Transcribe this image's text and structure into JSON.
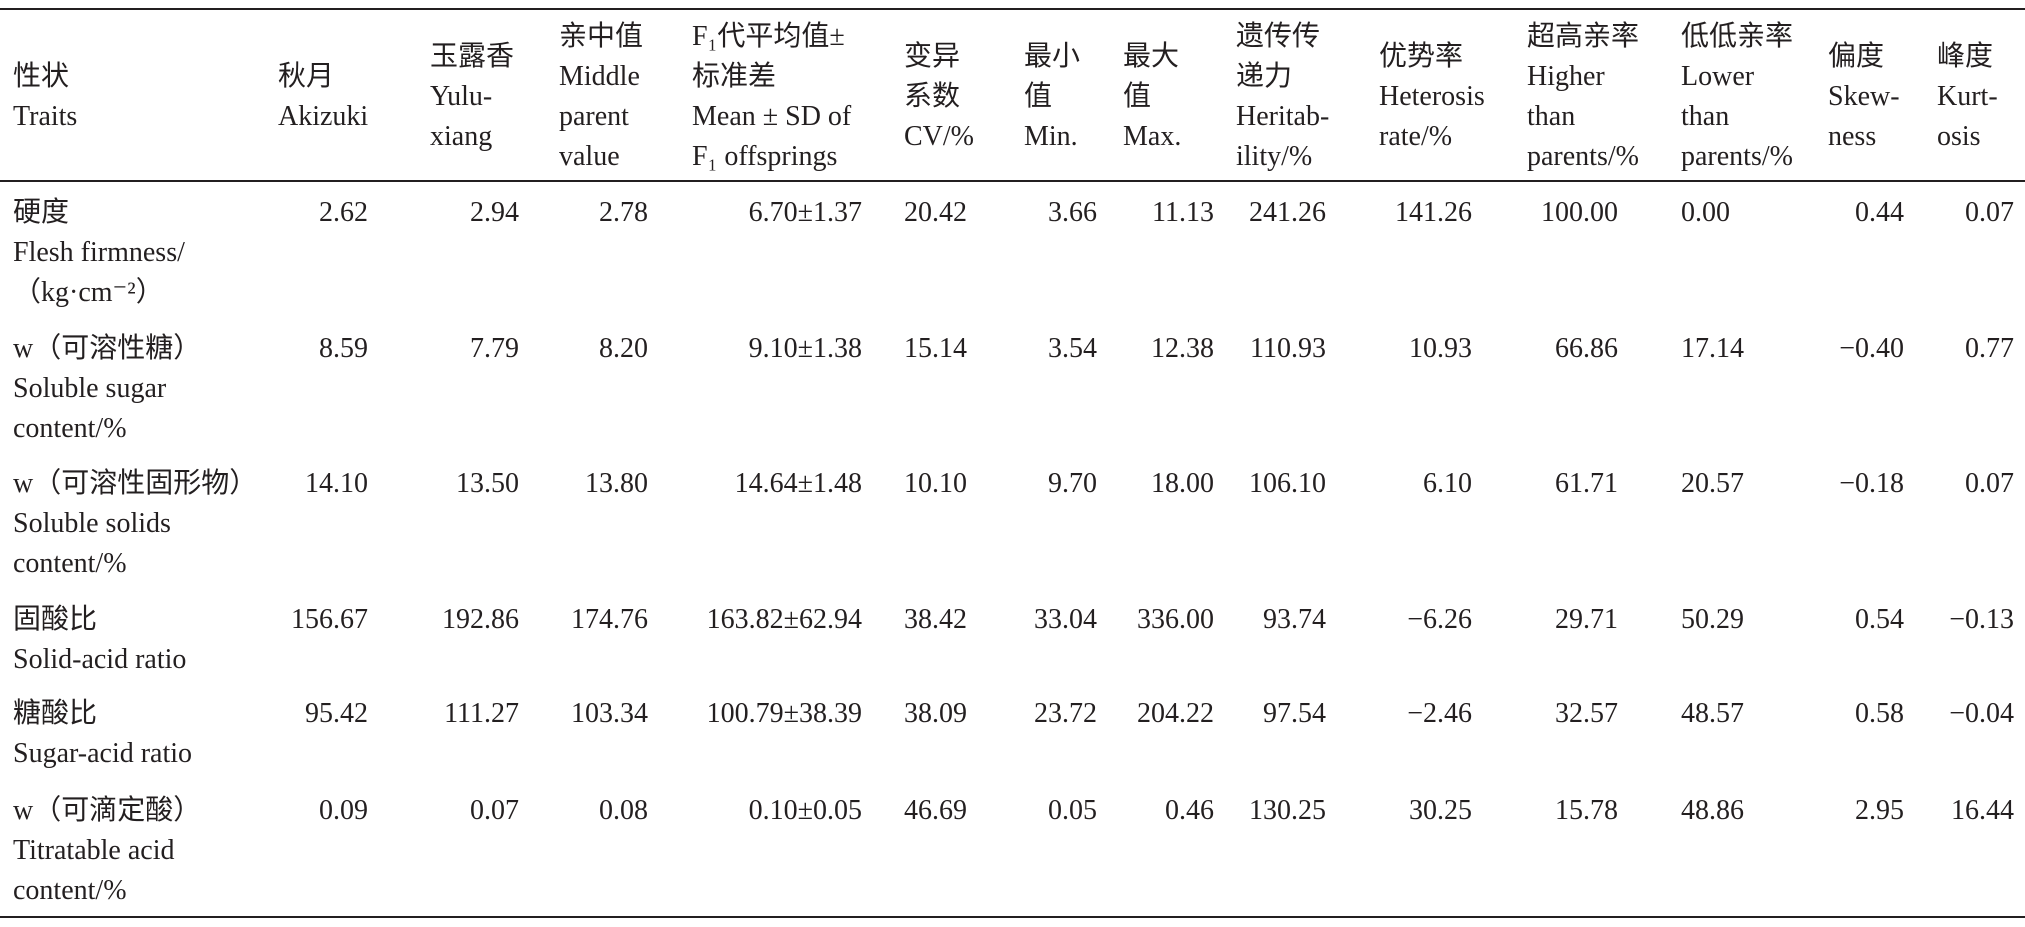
{
  "table": {
    "header": [
      [
        "性状",
        "Traits"
      ],
      [
        "秋月",
        "Akizuki"
      ],
      [
        "玉露香",
        "Yulu-",
        "xiang"
      ],
      [
        "亲中值",
        "Middle",
        "parent",
        "value"
      ],
      [
        "F₁代平均值±",
        "标准差",
        "Mean ± SD of",
        "F₁ offsprings"
      ],
      [
        "变异",
        "系数",
        "CV/%"
      ],
      [
        "最小",
        "值",
        "Min."
      ],
      [
        "最大",
        "值",
        "Max."
      ],
      [
        "遗传传",
        "递力",
        "Heritab-",
        "ility/%"
      ],
      [
        "优势率",
        "Heterosis",
        "rate/%"
      ],
      [
        "超高亲率",
        "Higher",
        "than",
        "parents/%"
      ],
      [
        "低低亲率",
        "Lower",
        "than",
        "parents/%"
      ],
      [
        "偏度",
        "Skew-",
        "ness"
      ],
      [
        "峰度",
        "Kurt-",
        "osis"
      ]
    ],
    "rows": [
      {
        "trait": [
          "硬度",
          "Flesh firmness/",
          "（kg·cm⁻²）"
        ],
        "values": [
          "2.62",
          "2.94",
          "2.78",
          "6.70±1.37",
          "20.42",
          "3.66",
          "11.13",
          "241.26",
          "141.26",
          "100.00",
          "0.00",
          "0.44",
          "0.07"
        ]
      },
      {
        "trait": [
          "w（可溶性糖）",
          "Soluble sugar",
          "content/%"
        ],
        "values": [
          "8.59",
          "7.79",
          "8.20",
          "9.10±1.38",
          "15.14",
          "3.54",
          "12.38",
          "110.93",
          "10.93",
          "66.86",
          "17.14",
          "−0.40",
          "0.77"
        ]
      },
      {
        "trait": [
          "w（可溶性固形物）",
          "Soluble solids",
          "content/%"
        ],
        "values": [
          "14.10",
          "13.50",
          "13.80",
          "14.64±1.48",
          "10.10",
          "9.70",
          "18.00",
          "106.10",
          "6.10",
          "61.71",
          "20.57",
          "−0.18",
          "0.07"
        ]
      },
      {
        "trait": [
          "固酸比",
          "Solid-acid ratio"
        ],
        "values": [
          "156.67",
          "192.86",
          "174.76",
          "163.82±62.94",
          "38.42",
          "33.04",
          "336.00",
          "93.74",
          "−6.26",
          "29.71",
          "50.29",
          "0.54",
          "−0.13"
        ]
      },
      {
        "trait": [
          "糖酸比",
          "Sugar-acid ratio"
        ],
        "values": [
          "95.42",
          "111.27",
          "103.34",
          "100.79±38.39",
          "38.09",
          "23.72",
          "204.22",
          "97.54",
          "−2.46",
          "32.57",
          "48.57",
          "0.58",
          "−0.04"
        ]
      },
      {
        "trait": [
          "w（可滴定酸）",
          "Titratable acid",
          "content/%"
        ],
        "values": [
          "0.09",
          "0.07",
          "0.08",
          "0.10±0.05",
          "46.69",
          "0.05",
          "0.46",
          "130.25",
          "30.25",
          "15.78",
          "48.86",
          "2.95",
          "16.44"
        ]
      }
    ]
  }
}
